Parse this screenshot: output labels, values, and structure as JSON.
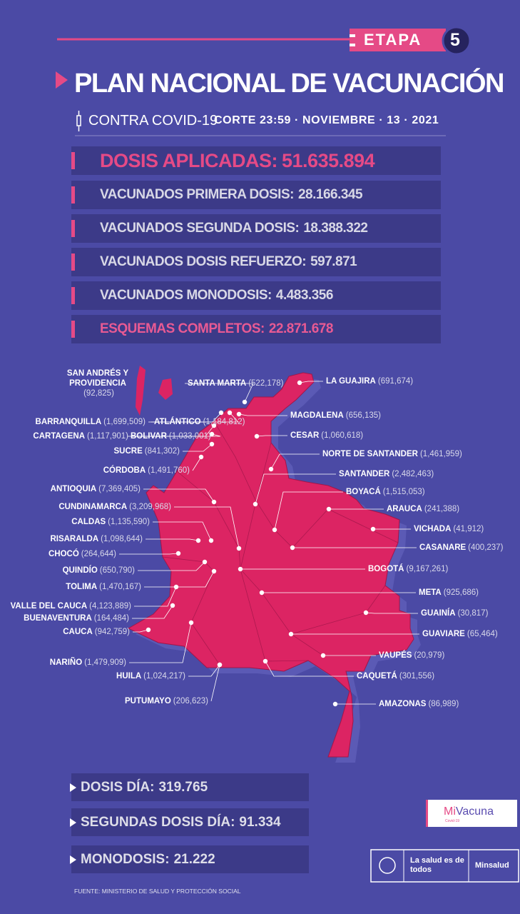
{
  "header": {
    "stage": "ETAPA",
    "stage_number": "5",
    "title": "PLAN NACIONAL DE VACUNACIÓN",
    "subtitle": "CONTRA COVID-19",
    "cutoff": "CORTE 23:59 · NOVIEMBRE · 13 · 2021"
  },
  "stats": [
    {
      "label": "DOSIS APLICADAS:",
      "value": "51.635.894"
    },
    {
      "label": "VACUNADOS PRIMERA DOSIS:",
      "value": "28.166.345"
    },
    {
      "label": "VACUNADOS SEGUNDA DOSIS:",
      "value": "18.388.322"
    },
    {
      "label": "VACUNADOS DOSIS REFUERZO:",
      "value": "597.871"
    },
    {
      "label": "VACUNADOS MONODOSIS:",
      "value": "4.483.356"
    },
    {
      "label": "ESQUEMAS COMPLETOS:",
      "value": "22.871.678"
    }
  ],
  "departments": [
    {
      "name": "SAN ANDRÉS Y PROVIDENCIA",
      "value": "(92,825)"
    },
    {
      "name": "SANTA MARTA",
      "value": "(522,178)"
    },
    {
      "name": "LA GUAJIRA",
      "value": "(691,674)"
    },
    {
      "name": "BARRANQUILLA",
      "value": "(1,699,509)"
    },
    {
      "name": "ATLÁNTICO",
      "value": "(1,184,812)"
    },
    {
      "name": "MAGDALENA",
      "value": "(656,135)"
    },
    {
      "name": "CARTAGENA",
      "value": "(1,117,901)"
    },
    {
      "name": "BOLIVAR",
      "value": "(1,033,001)"
    },
    {
      "name": "CESAR",
      "value": "(1,060,618)"
    },
    {
      "name": "SUCRE",
      "value": "(841,302)"
    },
    {
      "name": "NORTE DE SANTANDER",
      "value": "(1,461,959)"
    },
    {
      "name": "CÓRDOBA",
      "value": "(1,491,760)"
    },
    {
      "name": "SANTANDER",
      "value": "(2,482,463)"
    },
    {
      "name": "ANTIOQUIA",
      "value": "(7,369,405)"
    },
    {
      "name": "BOYACÁ",
      "value": "(1,515,053)"
    },
    {
      "name": "ARAUCA",
      "value": "(241,388)"
    },
    {
      "name": "CUNDINAMARCA",
      "value": "(3,209,968)"
    },
    {
      "name": "CALDAS",
      "value": "(1,135,590)"
    },
    {
      "name": "VICHADA",
      "value": "(41,912)"
    },
    {
      "name": "RISARALDA",
      "value": "(1,098,644)"
    },
    {
      "name": "CASANARE",
      "value": "(400,237)"
    },
    {
      "name": "CHOCÓ",
      "value": "(264,644)"
    },
    {
      "name": "BOGOTÁ",
      "value": "(9,167,261)"
    },
    {
      "name": "QUINDÍO",
      "value": "(650,790)"
    },
    {
      "name": "TOLIMA",
      "value": "(1,470,167)"
    },
    {
      "name": "META",
      "value": "(925,686)"
    },
    {
      "name": "VALLE DEL CAUCA",
      "value": "(4,123,889)"
    },
    {
      "name": "BUENAVENTURA",
      "value": "(164,484)"
    },
    {
      "name": "GUAINÍA",
      "value": "(30,817)"
    },
    {
      "name": "CAUCA",
      "value": "(942,759)"
    },
    {
      "name": "GUAVIARE",
      "value": "(65,464)"
    },
    {
      "name": "NARIÑO",
      "value": "(1,479,909)"
    },
    {
      "name": "VAUPÉS",
      "value": "(20,979)"
    },
    {
      "name": "HUILA",
      "value": "(1,024,217)"
    },
    {
      "name": "CAQUETÁ",
      "value": "(301,556)"
    },
    {
      "name": "PUTUMAYO",
      "value": "(206,623)"
    },
    {
      "name": "AMAZONAS",
      "value": "(86,989)"
    }
  ],
  "daily": [
    {
      "label": "DOSIS DÍA:",
      "value": "319.765"
    },
    {
      "label": "SEGUNDAS DOSIS DÍA:",
      "value": "91.334"
    },
    {
      "label": "MONODOSIS:",
      "value": "21.222"
    }
  ],
  "footer": {
    "source": "FUENTE: MINISTERIO DE SALUD Y PROTECCIÓN SOCIAL",
    "brand_mi": "Mi",
    "brand_vacuna": "Vacuna",
    "brand_sub": "Covid-19",
    "slogan": "La salud es de todos",
    "ministry": "Minsalud"
  }
}
